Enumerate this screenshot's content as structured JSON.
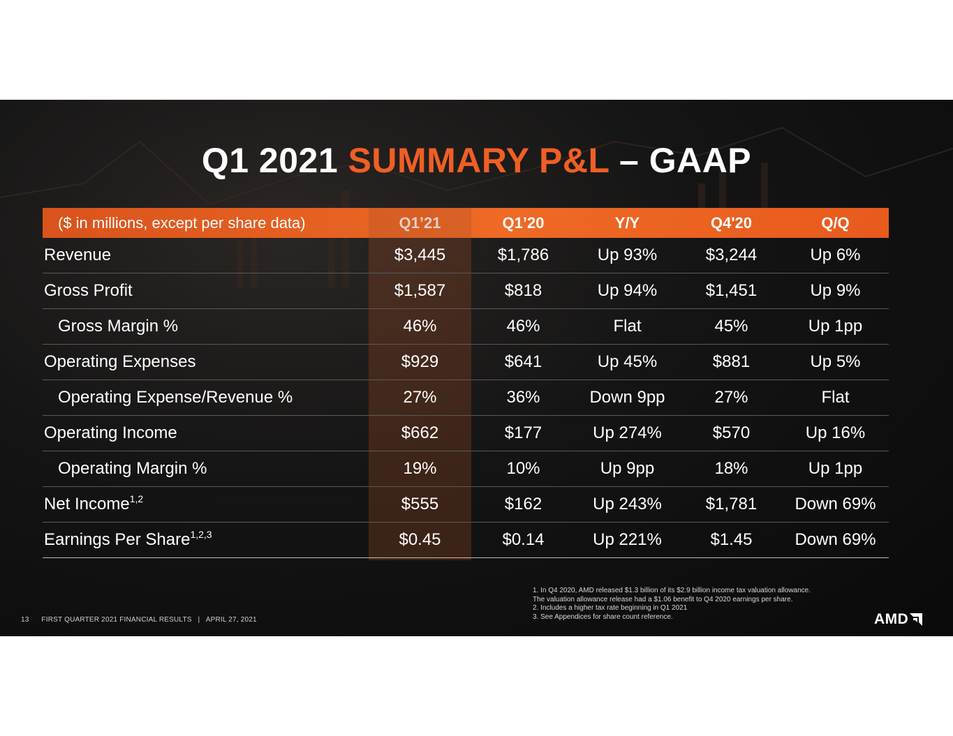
{
  "title": {
    "part1": "Q1 2021 ",
    "accent": "SUMMARY P&L",
    "part2": " – GAAP"
  },
  "table": {
    "headers": [
      "($ in millions, except per share data)",
      "Q1’21",
      "Q1’20",
      "Y/Y",
      "Q4'20",
      "Q/Q"
    ],
    "rows": [
      {
        "label": "Revenue",
        "sup": "",
        "values": [
          "$3,445",
          "$1,786",
          "Up 93%",
          "$3,244",
          "Up 6%"
        ]
      },
      {
        "label": "Gross Profit",
        "sup": "",
        "values": [
          "$1,587",
          "$818",
          "Up 94%",
          "$1,451",
          "Up 9%"
        ]
      },
      {
        "label": "Gross Margin %",
        "sup": "",
        "values": [
          "46%",
          "46%",
          "Flat",
          "45%",
          "Up 1pp"
        ]
      },
      {
        "label": "Operating Expenses",
        "sup": "",
        "values": [
          "$929",
          "$641",
          "Up 45%",
          "$881",
          "Up 5%"
        ]
      },
      {
        "label": "Operating Expense/Revenue %",
        "sup": "",
        "values": [
          "27%",
          "36%",
          "Down 9pp",
          "27%",
          "Flat"
        ]
      },
      {
        "label": "Operating Income",
        "sup": "",
        "values": [
          "$662",
          "$177",
          "Up 274%",
          "$570",
          "Up 16%"
        ]
      },
      {
        "label": "Operating Margin %",
        "sup": "",
        "values": [
          "19%",
          "10%",
          "Up 9pp",
          "18%",
          "Up 1pp"
        ]
      },
      {
        "label": "Net Income",
        "sup": "1,2",
        "values": [
          "$555",
          "$162",
          "Up 243%",
          "$1,781",
          "Down 69%"
        ]
      },
      {
        "label": "Earnings Per Share",
        "sup": "1,2,3",
        "values": [
          "$0.45",
          "$0.14",
          "Up 221%",
          "$1.45",
          "Down 69%"
        ]
      }
    ]
  },
  "footnotes": [
    "1. In Q4 2020, AMD released $1.3 billion of its $2.9 billion income tax valuation allowance.",
    "The valuation allowance release had a $1.06 benefit to Q4 2020 earnings per share.",
    "2. Includes a higher tax rate beginning in Q1 2021",
    "3. See Appendices for share count reference."
  ],
  "footer": {
    "page_number": "13",
    "text": "FIRST QUARTER 2021 FINANCIAL RESULTS   |   APRIL 27, 2021"
  },
  "logo": {
    "text": "AMD",
    "icon": "amd-arrow-icon"
  },
  "colors": {
    "accent": "#ef5f25",
    "background": "#111111",
    "header_band": "#e8601f"
  }
}
